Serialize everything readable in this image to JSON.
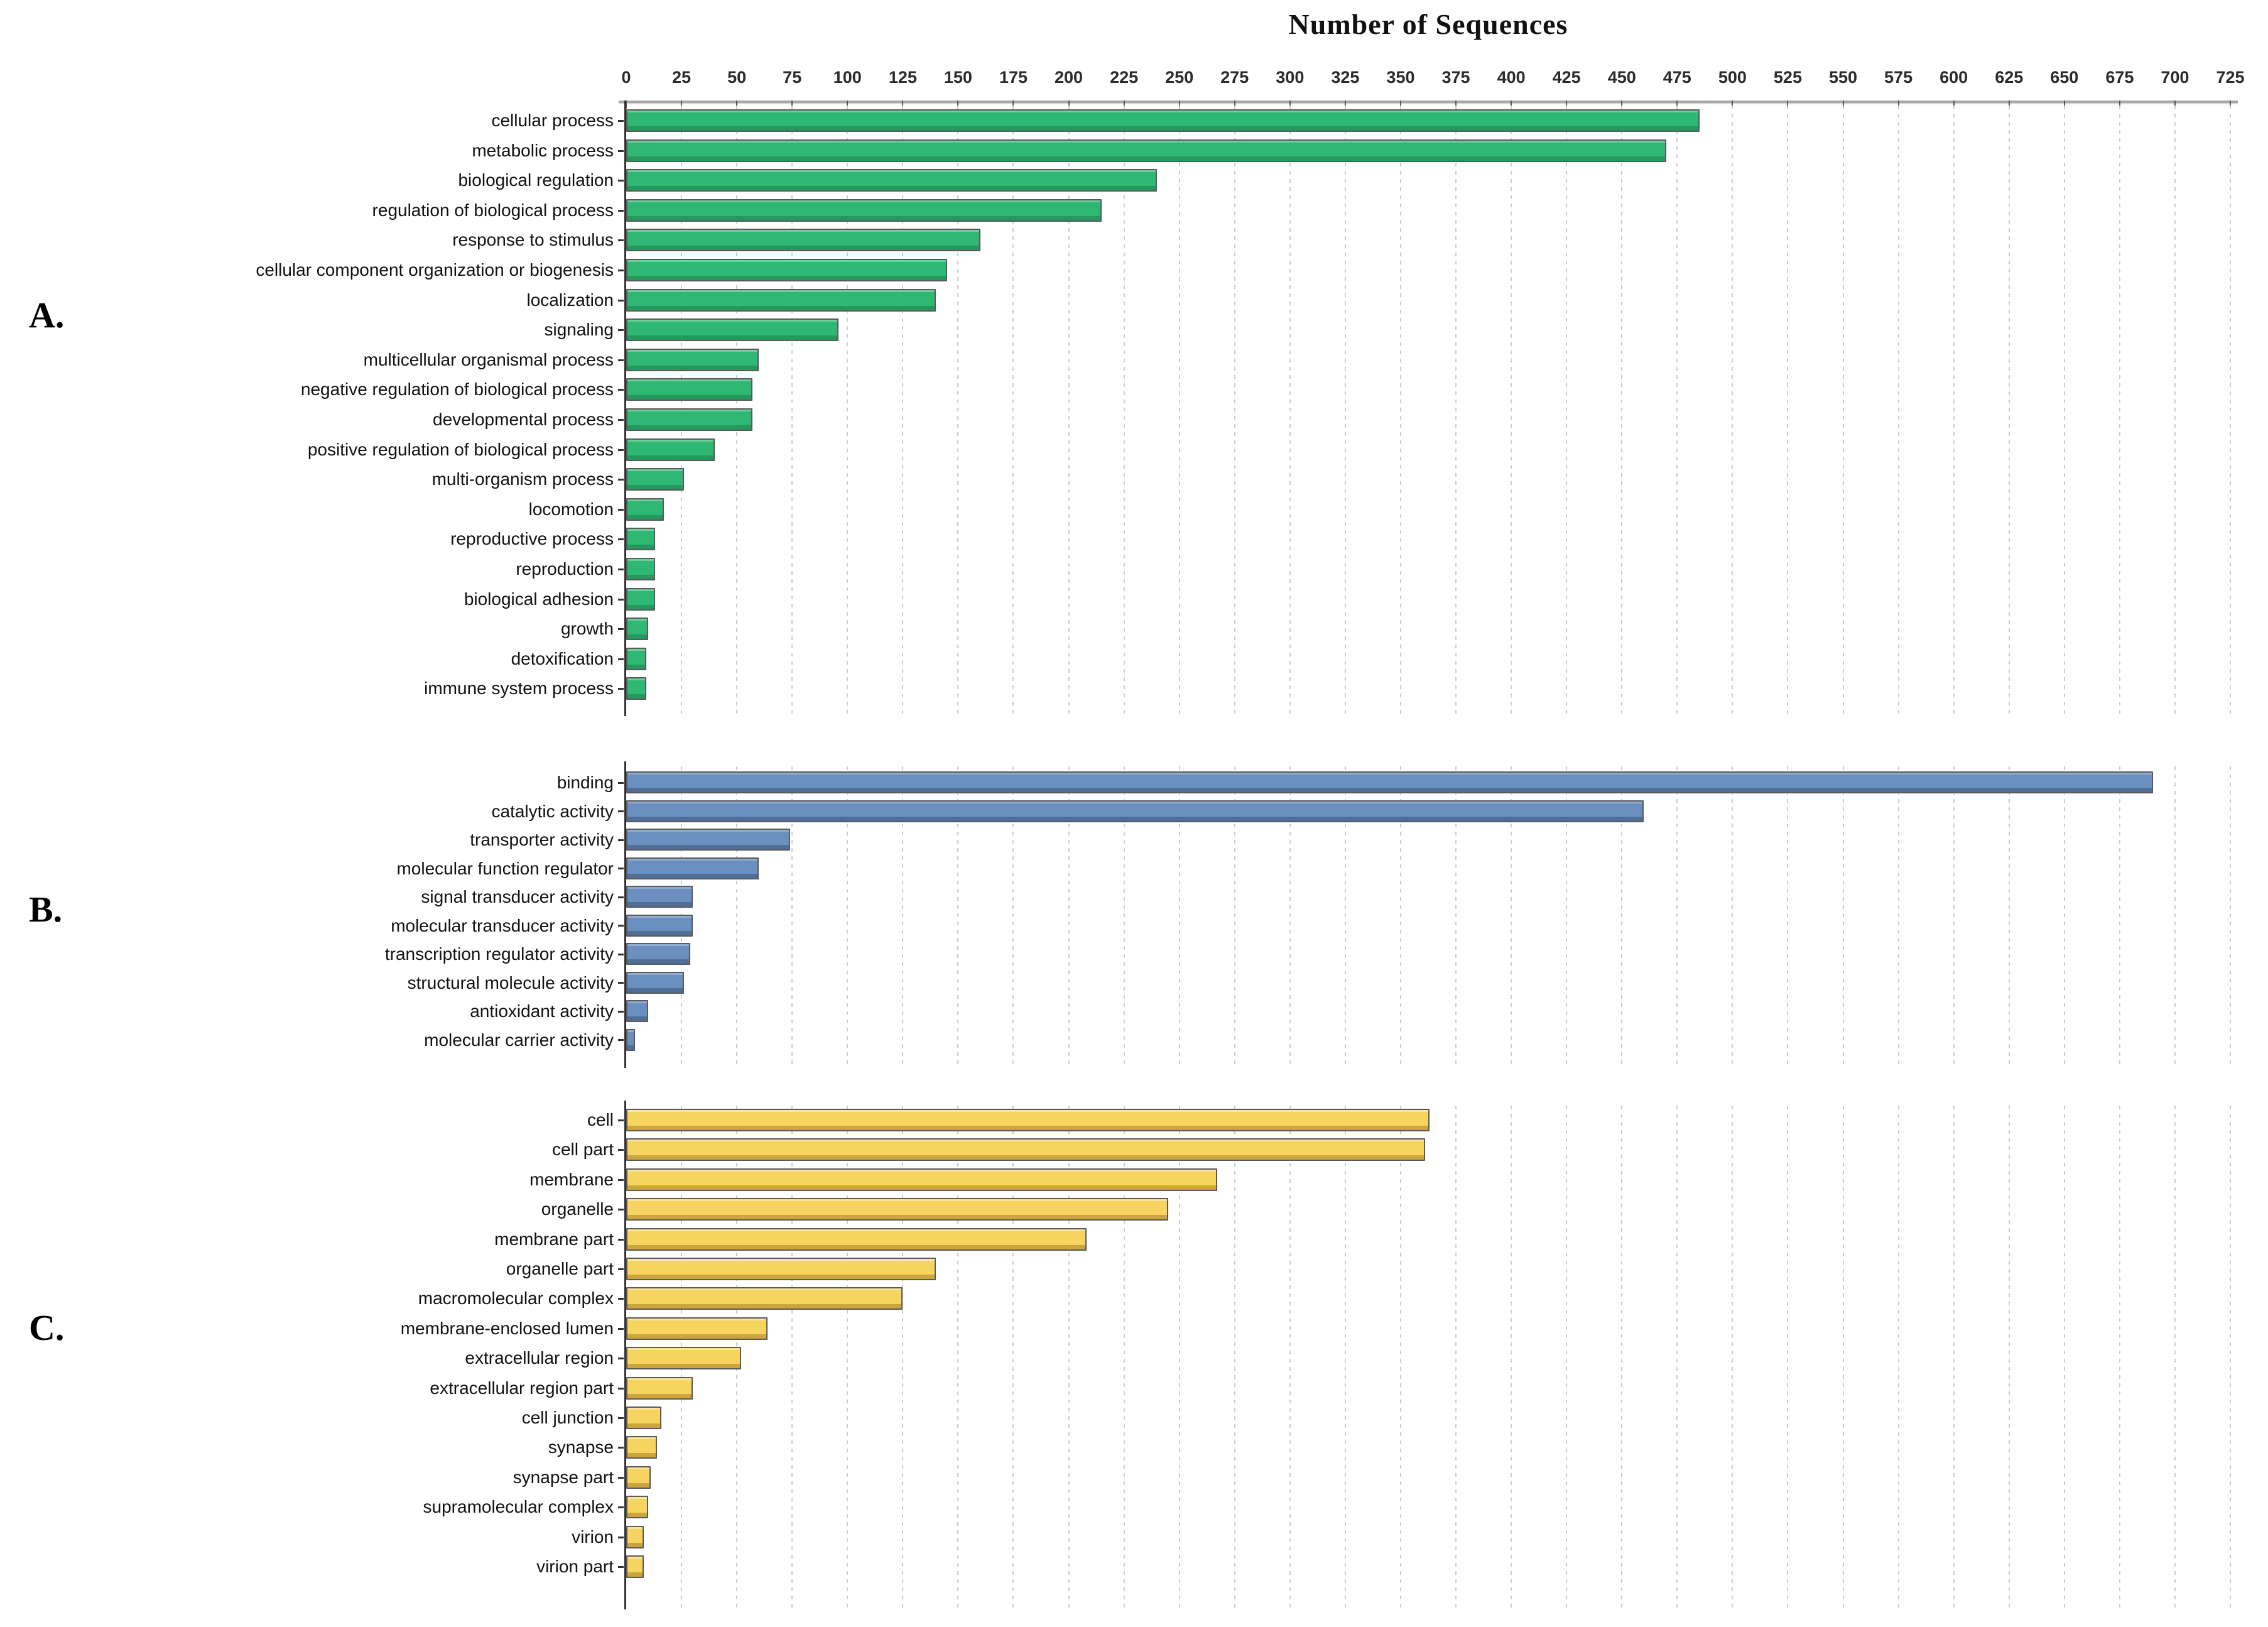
{
  "title": "Number of Sequences",
  "axis": {
    "min": 0,
    "max": 725,
    "step": 25,
    "tick_labels": [
      "0",
      "25",
      "50",
      "75",
      "100",
      "125",
      "150",
      "175",
      "200",
      "225",
      "250",
      "275",
      "300",
      "325",
      "350",
      "375",
      "400",
      "425",
      "450",
      "475",
      "500",
      "525",
      "550",
      "575",
      "600",
      "625",
      "650",
      "675",
      "700",
      "725"
    ]
  },
  "chart_data": [
    {
      "type": "bar",
      "panel_letter": "A.",
      "orientation": "horizontal",
      "xlabel": "Number of Sequences",
      "xlim": [
        0,
        725
      ],
      "grid": "dashed vertical every 25",
      "legend_position": "none",
      "bar_color": "#2eb873",
      "bar_shade": "rgba(16,92,52,0.35)",
      "bar_highlight": "rgba(255,255,255,0.30)",
      "categories": [
        "cellular process",
        "metabolic process",
        "biological regulation",
        "regulation of biological process",
        "response to stimulus",
        "cellular component organization or biogenesis",
        "localization",
        "signaling",
        "multicellular organismal process",
        "negative regulation of biological process",
        "developmental process",
        "positive regulation of biological process",
        "multi-organism process",
        "locomotion",
        "reproductive process",
        "reproduction",
        "biological adhesion",
        "growth",
        "detoxification",
        "immune system process"
      ],
      "values": [
        485,
        470,
        240,
        215,
        160,
        145,
        140,
        96,
        60,
        57,
        57,
        40,
        26,
        17,
        13,
        13,
        13,
        10,
        9,
        9
      ]
    },
    {
      "type": "bar",
      "panel_letter": "B.",
      "orientation": "horizontal",
      "xlabel": "Number of Sequences",
      "xlim": [
        0,
        725
      ],
      "grid": "dashed vertical every 25",
      "legend_position": "none",
      "bar_color": "#6b90bf",
      "bar_shade": "rgba(25,45,75,0.33)",
      "bar_highlight": "rgba(255,255,255,0.25)",
      "categories": [
        "binding",
        "catalytic activity",
        "transporter activity",
        "molecular function regulator",
        "signal transducer activity",
        "molecular transducer activity",
        "transcription regulator activity",
        "structural molecule activity",
        "antioxidant activity",
        "molecular carrier activity"
      ],
      "values": [
        690,
        460,
        74,
        60,
        30,
        30,
        29,
        26,
        10,
        4
      ]
    },
    {
      "type": "bar",
      "panel_letter": "C.",
      "orientation": "horizontal",
      "xlabel": "Number of Sequences",
      "xlim": [
        0,
        725
      ],
      "grid": "dashed vertical every 25",
      "legend_position": "none",
      "bar_color": "#f7d45f",
      "bar_shade": "rgba(150,110,20,0.45)",
      "bar_highlight": "rgba(255,255,255,0.40)",
      "categories": [
        "cell",
        "cell part",
        "membrane",
        "organelle",
        "membrane part",
        "organelle part",
        "macromolecular complex",
        "membrane-enclosed lumen",
        "extracellular region",
        "extracellular region part",
        "cell junction",
        "synapse",
        "synapse part",
        "supramolecular complex",
        "virion",
        "virion part"
      ],
      "values": [
        363,
        361,
        267,
        245,
        208,
        140,
        125,
        64,
        52,
        30,
        16,
        14,
        11,
        10,
        8,
        8
      ]
    }
  ]
}
